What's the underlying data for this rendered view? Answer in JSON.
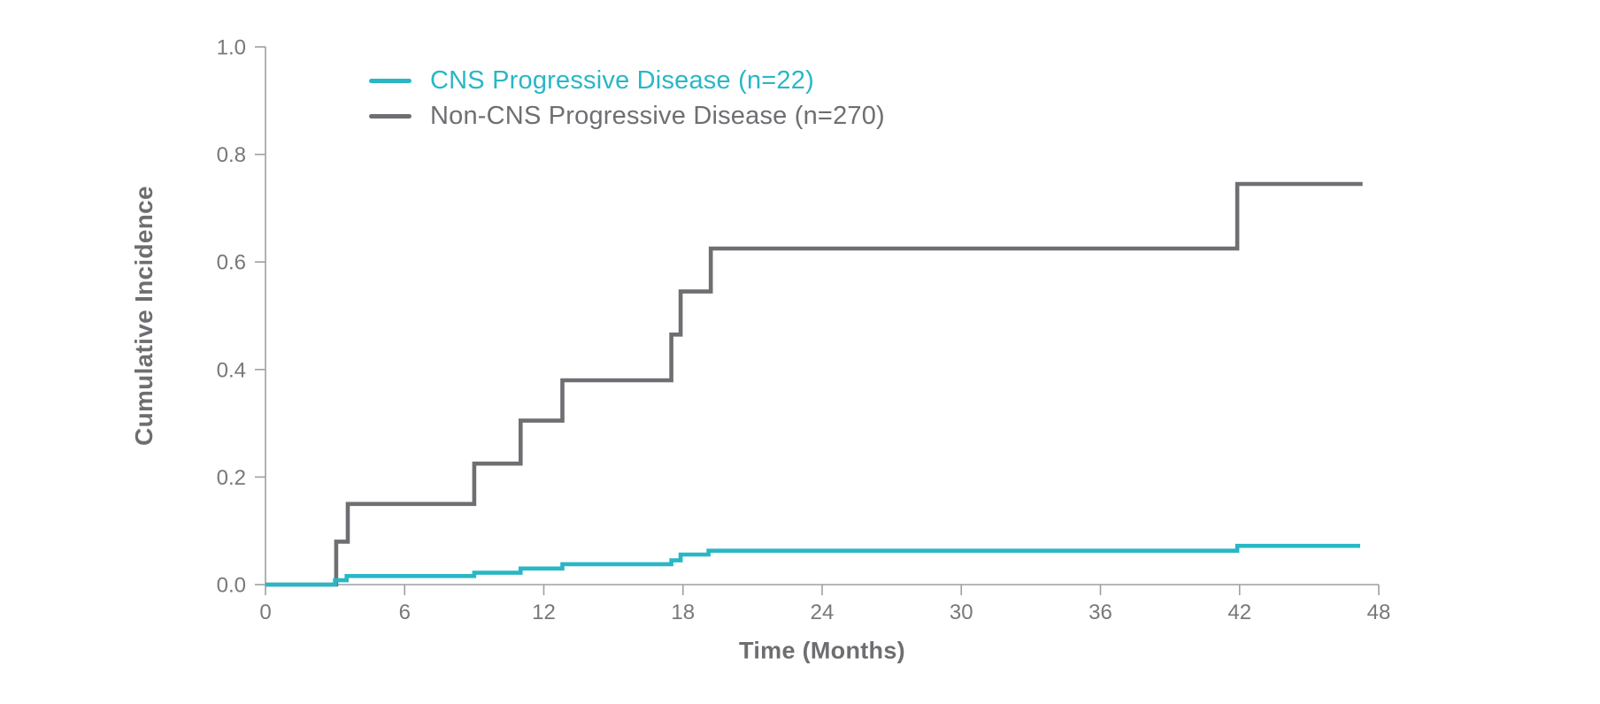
{
  "figure": {
    "background": "#ffffff"
  },
  "chart_data": {
    "type": "line",
    "line_style": "step-after",
    "title": "",
    "xlabel": "Time (Months)",
    "ylabel": "Cumulative Incidence",
    "xlim": [
      0,
      48
    ],
    "ylim": [
      0,
      1.0
    ],
    "x_ticks": [
      0,
      6,
      12,
      18,
      24,
      30,
      36,
      42,
      48
    ],
    "y_ticks": [
      0,
      0.2,
      0.4,
      0.6,
      0.8,
      1.0
    ],
    "y_tick_labels": [
      "0.0",
      "0.2",
      "0.4",
      "0.6",
      "0.8",
      "1.0"
    ],
    "grid": false,
    "legend_position": "inside-top-left",
    "series": [
      {
        "id": "cns",
        "name": "CNS Progressive Disease (n=22)",
        "color": "#29b7c6",
        "points": [
          [
            0,
            0
          ],
          [
            3.0,
            0.008
          ],
          [
            3.5,
            0.016
          ],
          [
            9.0,
            0.022
          ],
          [
            11.0,
            0.03
          ],
          [
            12.8,
            0.038
          ],
          [
            17.5,
            0.045
          ],
          [
            17.9,
            0.056
          ],
          [
            19.1,
            0.063
          ],
          [
            41.9,
            0.072
          ],
          [
            47.2,
            0.072
          ]
        ]
      },
      {
        "id": "non-cns",
        "name": "Non-CNS Progressive Disease (n=270)",
        "color": "#6e6f72",
        "points": [
          [
            0,
            0
          ],
          [
            3.05,
            0.08
          ],
          [
            3.55,
            0.15
          ],
          [
            9.0,
            0.225
          ],
          [
            11.0,
            0.305
          ],
          [
            12.8,
            0.38
          ],
          [
            17.5,
            0.465
          ],
          [
            17.9,
            0.545
          ],
          [
            19.2,
            0.625
          ],
          [
            41.9,
            0.745
          ],
          [
            47.3,
            0.745
          ]
        ]
      }
    ],
    "colors": {
      "axis": "#9d9fa2",
      "tick_labels": "#77787b",
      "axis_titles": "#6d6e71"
    }
  }
}
